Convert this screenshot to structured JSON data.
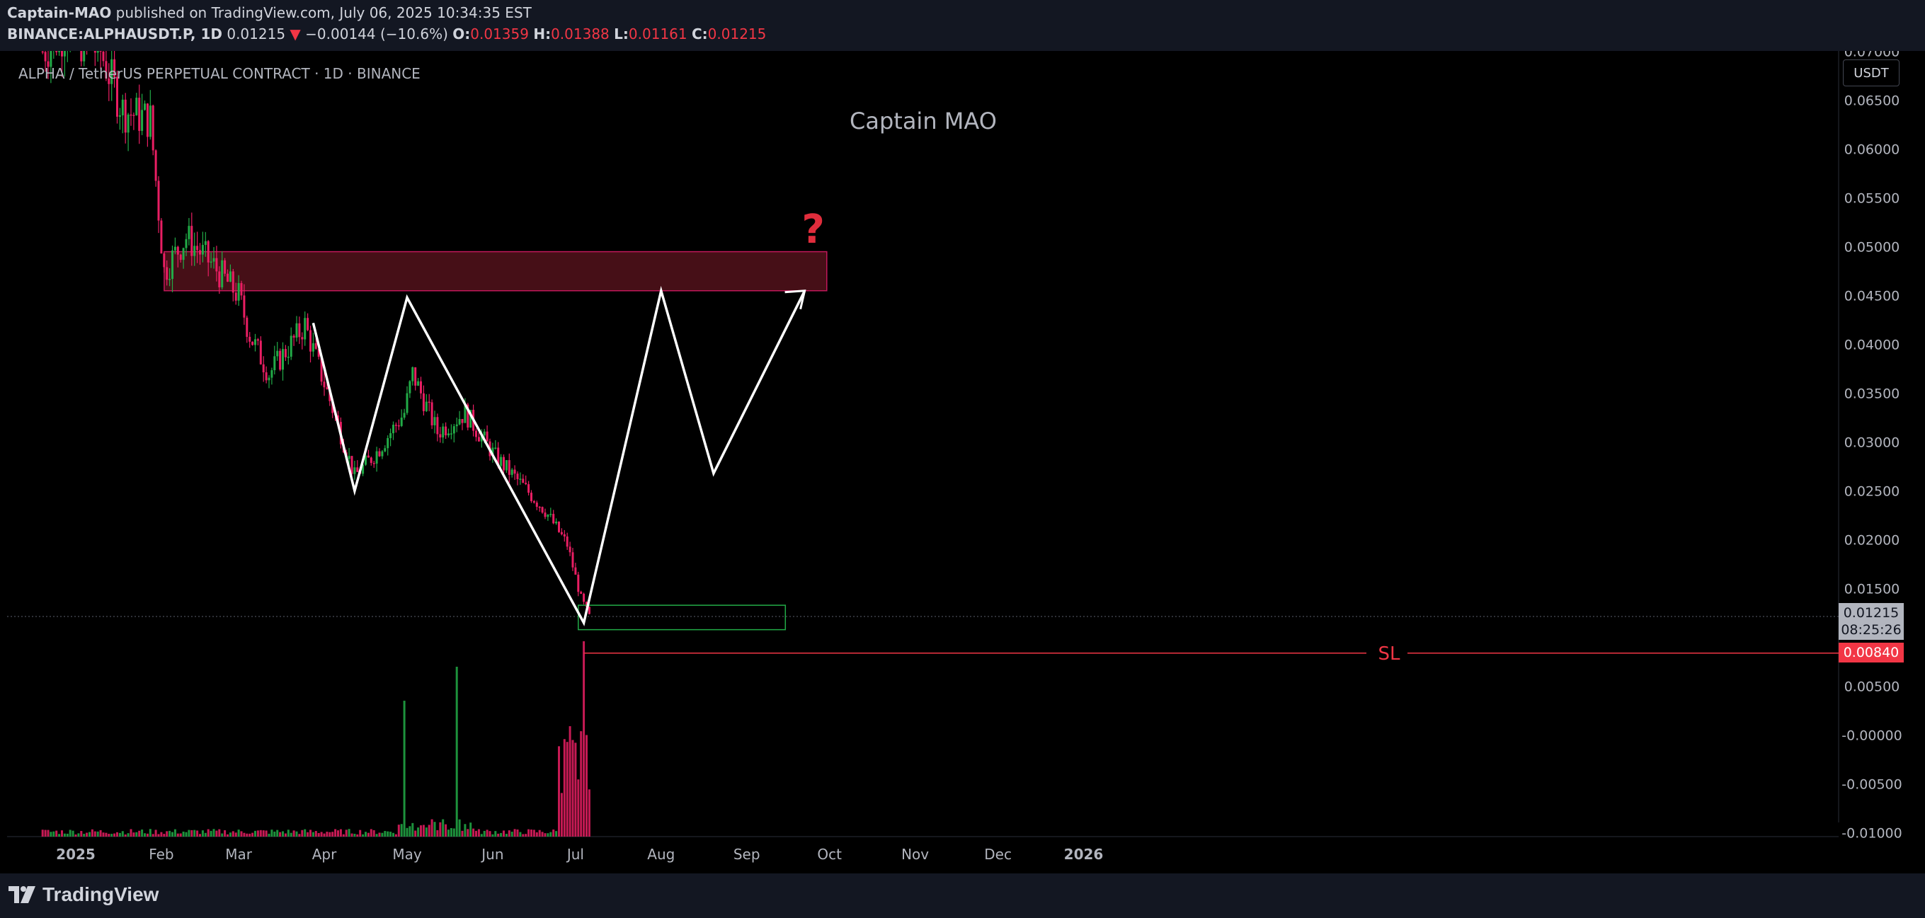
{
  "header": {
    "line1": {
      "author": "Captain-MAO",
      "rest": " published on TradingView.com, July 06, 2025 10:34:35 EST"
    },
    "line2": {
      "symbol": "BINANCE:ALPHAUSDT.P, 1D",
      "last": "0.01215",
      "arrow": "▼",
      "change": "−0.00144 (−10.6%)",
      "o_label": "O:",
      "o_value": "0.01359",
      "h_label": "H:",
      "h_value": "0.01388",
      "l_label": "L:",
      "l_value": "0.01161",
      "c_label": "C:",
      "c_value": "0.01215"
    }
  },
  "pair_title": "ALPHA / TetherUS PERPETUAL CONTRACT · 1D · BINANCE",
  "watermark": "Captain MAO",
  "currency_button": "USDT",
  "footer": {
    "logo_text": "TradingView"
  },
  "colors": {
    "up": "#22ab47",
    "down": "#e91e63",
    "zone_fill": "#4a1018",
    "zone_border": "#c2185b",
    "sl": "#f23645",
    "pattern": "#ffffff",
    "entry_box": "#22ab47",
    "question": "#e02d3c"
  },
  "chart_data": {
    "type": "candlestick",
    "title": "ALPHA / TetherUS PERPETUAL CONTRACT · 1D · BINANCE",
    "y_axis": {
      "ticks": [
        "0.07000",
        "0.06500",
        "0.06000",
        "0.05500",
        "0.05000",
        "0.04500",
        "0.04000",
        "0.03500",
        "0.03000",
        "0.02500",
        "0.02000",
        "0.01500",
        "0.00500",
        "-0.00000",
        "-0.00500",
        "-0.01000"
      ],
      "tick_values": [
        0.07,
        0.065,
        0.06,
        0.055,
        0.05,
        0.045,
        0.04,
        0.035,
        0.03,
        0.025,
        0.02,
        0.015,
        0.005,
        0,
        -0.005,
        -0.01
      ]
    },
    "x_axis": {
      "ticks": [
        "2025",
        "Feb",
        "Mar",
        "Apr",
        "May",
        "Jun",
        "Jul",
        "Aug",
        "Sep",
        "Oct",
        "Nov",
        "Dec",
        "2026"
      ],
      "tick_dates": [
        "2025-01-01",
        "2025-02-01",
        "2025-03-01",
        "2025-04-01",
        "2025-05-01",
        "2025-06-01",
        "2025-07-01",
        "2025-08-01",
        "2025-09-01",
        "2025-10-01",
        "2025-11-01",
        "2025-12-01",
        "2026-01-01"
      ]
    },
    "price_series_anchor_closes": [
      {
        "date": "2024-12-20",
        "close": 0.07
      },
      {
        "date": "2024-12-28",
        "close": 0.072
      },
      {
        "date": "2025-01-10",
        "close": 0.07
      },
      {
        "date": "2025-01-18",
        "close": 0.064
      },
      {
        "date": "2025-01-28",
        "close": 0.063
      },
      {
        "date": "2025-02-02",
        "close": 0.0475
      },
      {
        "date": "2025-02-10",
        "close": 0.051
      },
      {
        "date": "2025-02-20",
        "close": 0.048
      },
      {
        "date": "2025-03-01",
        "close": 0.045
      },
      {
        "date": "2025-03-05",
        "close": 0.041
      },
      {
        "date": "2025-03-12",
        "close": 0.037
      },
      {
        "date": "2025-03-25",
        "close": 0.042
      },
      {
        "date": "2025-04-08",
        "close": 0.03
      },
      {
        "date": "2025-04-12",
        "close": 0.0265
      },
      {
        "date": "2025-04-20",
        "close": 0.029
      },
      {
        "date": "2025-04-30",
        "close": 0.033
      },
      {
        "date": "2025-05-03",
        "close": 0.037
      },
      {
        "date": "2025-05-12",
        "close": 0.031
      },
      {
        "date": "2025-05-22",
        "close": 0.033
      },
      {
        "date": "2025-06-02",
        "close": 0.0285
      },
      {
        "date": "2025-06-12",
        "close": 0.0255
      },
      {
        "date": "2025-06-20",
        "close": 0.023
      },
      {
        "date": "2025-06-28",
        "close": 0.0195
      },
      {
        "date": "2025-07-03",
        "close": 0.014
      },
      {
        "date": "2025-07-06",
        "close": 0.01215
      }
    ],
    "last_price": {
      "value": 0.01215,
      "label": "0.01215",
      "countdown": "08:25:26"
    },
    "stop_loss": {
      "value": 0.0084,
      "label": "0.00840",
      "text": "SL"
    },
    "resistance_zone": {
      "from_date": "2025-02-01",
      "to_date": "2025-09-30",
      "low": 0.0455,
      "high": 0.0495
    },
    "entry_zone": {
      "from_date": "2025-07-02",
      "to_date": "2025-09-15",
      "low": 0.0108,
      "high": 0.0133
    },
    "pattern_points": [
      {
        "date": "2025-03-28",
        "price": 0.0422
      },
      {
        "date": "2025-04-12",
        "price": 0.025
      },
      {
        "date": "2025-05-01",
        "price": 0.0448
      },
      {
        "date": "2025-07-04",
        "price": 0.0115
      },
      {
        "date": "2025-08-01",
        "price": 0.0455
      },
      {
        "date": "2025-08-20",
        "price": 0.0268
      },
      {
        "date": "2025-09-22",
        "price": 0.0455
      }
    ],
    "annotation": "?",
    "volume_spikes": [
      {
        "date": "2025-04-30",
        "relative": 0.8
      },
      {
        "date": "2025-05-19",
        "relative": 1.0
      },
      {
        "date": "2025-06-29",
        "relative": 0.65
      },
      {
        "date": "2025-07-04",
        "relative": 1.15
      }
    ]
  }
}
